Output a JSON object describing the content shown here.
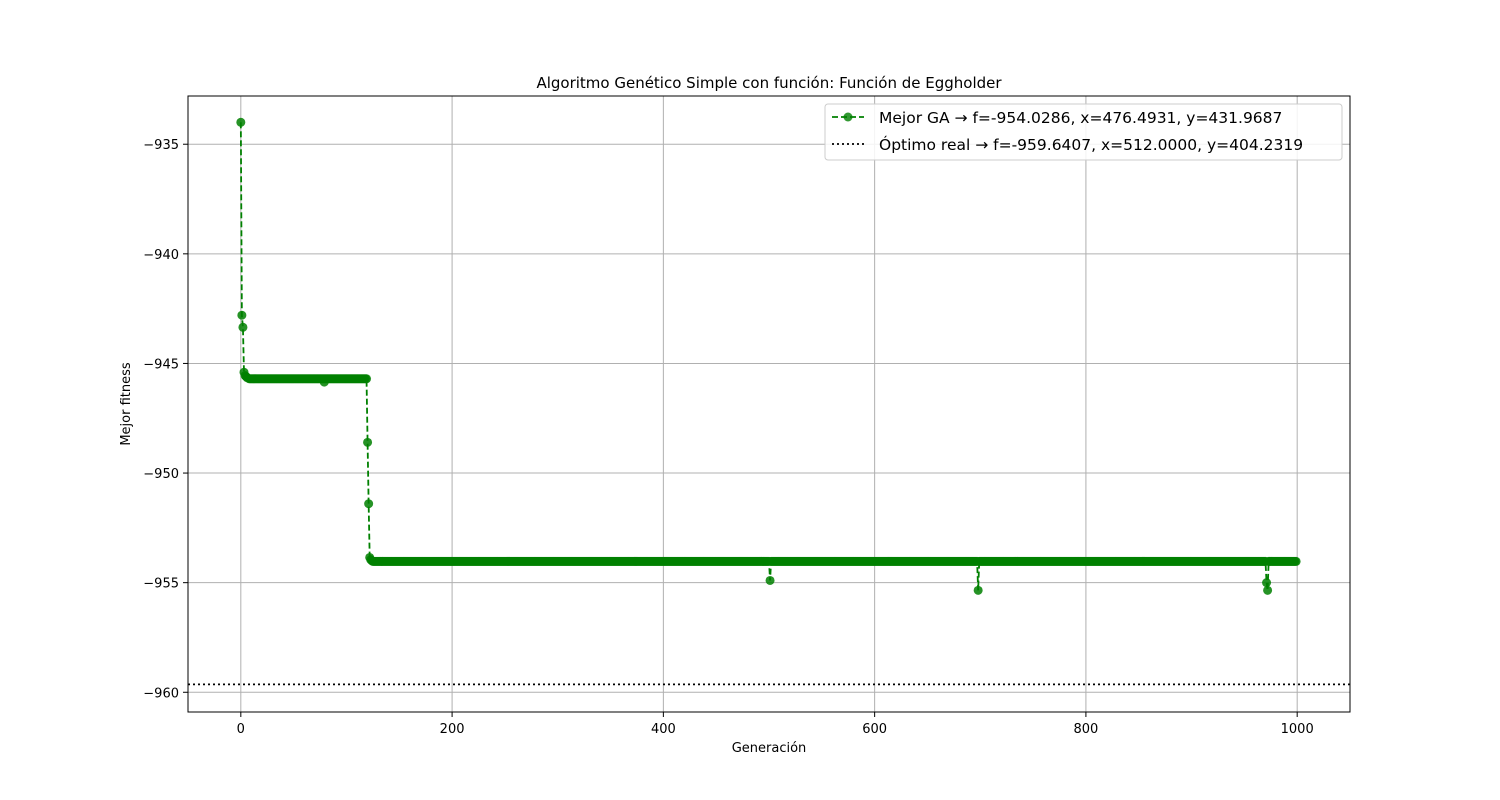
{
  "chart_data": {
    "type": "line",
    "title": "Algoritmo Genético Simple con función: Función de Eggholder",
    "xlabel": "Generación",
    "ylabel": "Mejor fitness",
    "xlim": [
      -50,
      1050
    ],
    "ylim": [
      -960.9,
      -932.8
    ],
    "xticks": [
      0,
      200,
      400,
      600,
      800,
      1000
    ],
    "yticks": [
      -935,
      -940,
      -945,
      -950,
      -955,
      -960
    ],
    "xtick_labels": [
      "0",
      "200",
      "400",
      "600",
      "800",
      "1000"
    ],
    "ytick_labels": [
      "−935",
      "−940",
      "−945",
      "−950",
      "−955",
      "−960"
    ],
    "grid": true,
    "legend_position": "top-right",
    "series": [
      {
        "name": "Mejor GA → f=-954.0286, x=476.4931, y=431.9687",
        "style": "dashed-with-markers",
        "color": "#008000",
        "segments": [
          {
            "points": [
              [
                0,
                -934.0
              ],
              [
                1,
                -942.8
              ],
              [
                2,
                -943.35
              ],
              [
                3,
                -945.4
              ],
              [
                4,
                -945.55
              ],
              [
                5,
                -945.6
              ],
              [
                6,
                -945.65
              ],
              [
                8,
                -945.7
              ]
            ]
          },
          {
            "range": [
              9,
              119
            ],
            "value": -945.7
          },
          {
            "points": [
              [
                120,
                -948.6
              ],
              [
                121,
                -951.4
              ],
              [
                122,
                -953.85
              ],
              [
                123,
                -953.95
              ],
              [
                124,
                -954.0
              ]
            ]
          },
          {
            "range": [
              125,
              500
            ],
            "value": -954.03
          },
          {
            "points": [
              [
                501,
                -954.9
              ]
            ]
          },
          {
            "range": [
              502,
              697
            ],
            "value": -954.03
          },
          {
            "points": [
              [
                698,
                -955.35
              ]
            ]
          },
          {
            "range": [
              699,
              970
            ],
            "value": -954.03
          },
          {
            "points": [
              [
                971,
                -955.0
              ],
              [
                972,
                -955.35
              ]
            ]
          },
          {
            "range": [
              973,
              999
            ],
            "value": -954.03
          }
        ],
        "extra_points": [
          [
            79,
            -945.85
          ]
        ]
      },
      {
        "name": "Óptimo real → f=-959.6407, x=512.0000, y=404.2319",
        "style": "dotted-horizontal",
        "color": "#000000",
        "value": -959.6407
      }
    ]
  }
}
